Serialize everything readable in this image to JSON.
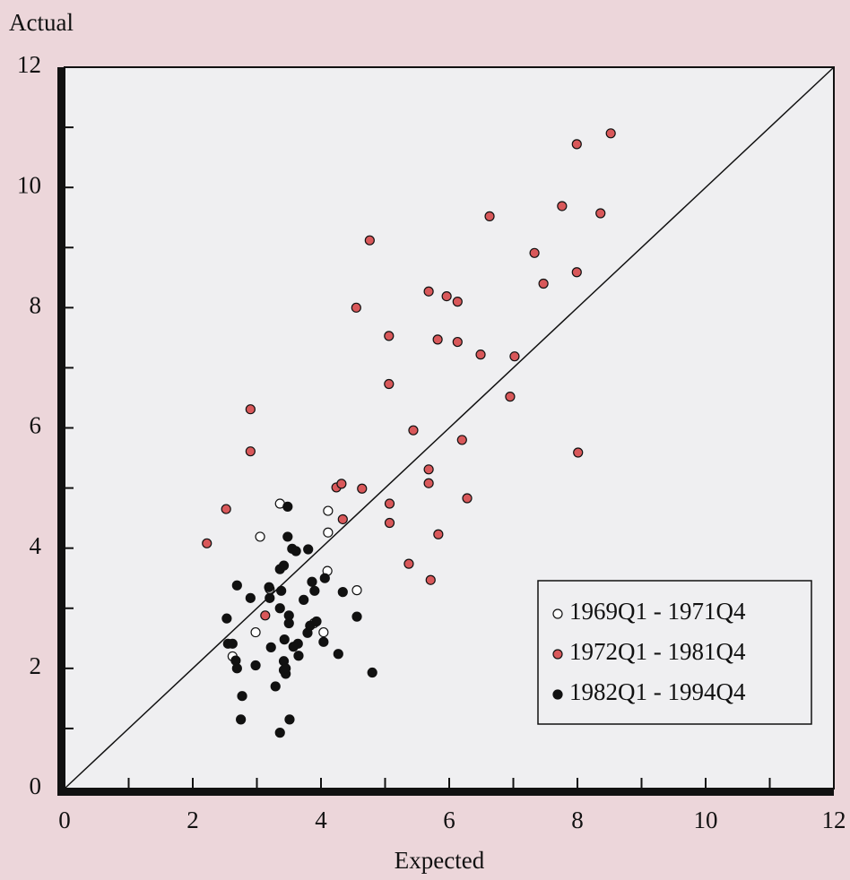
{
  "chart_data": {
    "type": "scatter",
    "xlabel": "Expected",
    "ylabel": "Actual",
    "xlim": [
      0,
      12
    ],
    "ylim": [
      0,
      12
    ],
    "xticks": [
      0,
      2,
      4,
      6,
      8,
      10,
      12
    ],
    "yticks": [
      0,
      2,
      4,
      6,
      8,
      10,
      12
    ],
    "legend": "lower right",
    "series": [
      {
        "name": "1969Q1 - 1971Q4",
        "color": "#ffffff",
        "x": [
          3.36,
          3.05,
          2.62,
          2.98,
          3.2,
          4.11,
          4.11,
          4.1,
          4.56,
          4.04,
          3.89
        ],
        "values": [
          4.74,
          4.19,
          2.2,
          2.6,
          3.32,
          4.62,
          4.26,
          3.62,
          3.3,
          2.6,
          2.75
        ]
      },
      {
        "name": "1972Q1 - 1981Q4",
        "color": "#d9585a",
        "x": [
          2.22,
          2.52,
          2.9,
          2.9,
          3.13,
          4.24,
          4.32,
          4.34,
          4.64,
          4.55,
          4.76,
          5.06,
          5.06,
          5.07,
          5.07,
          5.37,
          5.44,
          5.68,
          5.68,
          5.68,
          5.71,
          5.82,
          5.83,
          5.96,
          6.13,
          6.13,
          6.2,
          6.28,
          6.49,
          6.63,
          6.95,
          7.02,
          7.33,
          7.47,
          7.76,
          7.99,
          7.99,
          8.01,
          8.36,
          8.52
        ],
        "values": [
          4.08,
          4.65,
          5.61,
          6.31,
          2.88,
          5.01,
          5.07,
          4.48,
          4.99,
          8.0,
          9.12,
          7.53,
          6.73,
          4.74,
          4.42,
          3.74,
          5.96,
          8.27,
          5.31,
          5.08,
          3.47,
          7.47,
          4.23,
          8.19,
          8.1,
          7.43,
          5.8,
          4.83,
          7.22,
          9.52,
          6.52,
          7.19,
          8.91,
          8.4,
          9.69,
          10.72,
          8.59,
          5.59,
          9.57,
          10.9
        ]
      },
      {
        "name": "1982Q1 - 1994Q4",
        "color": "#111111",
        "x": [
          3.48,
          2.69,
          2.53,
          2.55,
          2.62,
          2.9,
          2.69,
          2.77,
          2.75,
          2.67,
          2.98,
          3.2,
          3.22,
          3.38,
          3.36,
          3.36,
          3.42,
          3.48,
          3.55,
          3.61,
          3.8,
          3.86,
          3.9,
          3.73,
          3.5,
          3.5,
          3.64,
          3.57,
          3.43,
          3.42,
          3.42,
          3.45,
          3.45,
          3.29,
          3.36,
          3.51,
          3.65,
          3.79,
          3.83,
          3.93,
          4.06,
          4.04,
          4.27,
          4.34,
          4.56,
          4.8,
          3.19
        ],
        "values": [
          4.69,
          3.38,
          2.83,
          2.41,
          2.41,
          3.17,
          2.0,
          1.54,
          1.15,
          2.13,
          2.05,
          3.17,
          2.35,
          3.29,
          3.0,
          3.65,
          3.71,
          4.19,
          3.99,
          3.95,
          3.98,
          3.44,
          3.29,
          3.14,
          2.88,
          2.75,
          2.41,
          2.36,
          2.48,
          2.12,
          1.97,
          1.91,
          2.0,
          1.7,
          0.93,
          1.15,
          2.21,
          2.59,
          2.71,
          2.78,
          3.5,
          2.44,
          2.24,
          3.27,
          2.86,
          1.93,
          3.35
        ]
      }
    ]
  }
}
